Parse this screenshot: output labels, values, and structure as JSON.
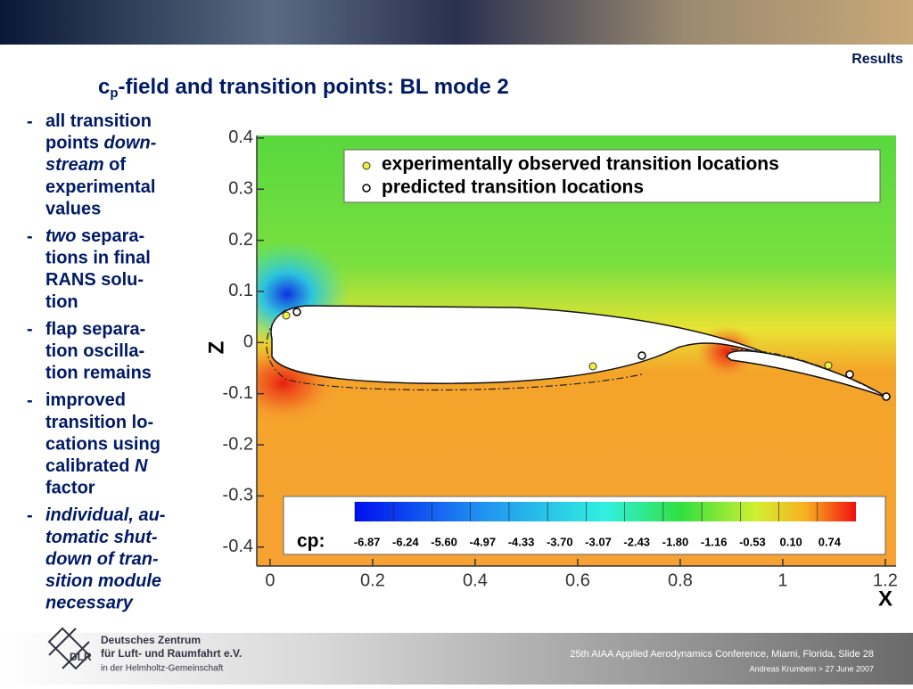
{
  "header": {
    "section": "Results"
  },
  "title": {
    "main": "c",
    "subscript": "p",
    "rest": "-field and transition points: BL mode 2"
  },
  "bullets": [
    {
      "marker": "-",
      "lines": [
        [
          {
            "text": "all transition",
            "italic": false
          }
        ],
        [
          {
            "text": "points ",
            "italic": false
          },
          {
            "text": "down-",
            "italic": true
          }
        ],
        [
          {
            "text": "stream",
            "italic": true
          },
          {
            "text": " of",
            "italic": false
          }
        ],
        [
          {
            "text": "experimental",
            "italic": false
          }
        ],
        [
          {
            "text": "values",
            "italic": false
          }
        ]
      ]
    },
    {
      "marker": "-",
      "lines": [
        [
          {
            "text": "two",
            "italic": true
          },
          {
            "text": " separa-",
            "italic": false
          }
        ],
        [
          {
            "text": "tions in final",
            "italic": false
          }
        ],
        [
          {
            "text": "RANS solu-",
            "italic": false
          }
        ],
        [
          {
            "text": "tion",
            "italic": false
          }
        ]
      ]
    },
    {
      "marker": "-",
      "lines": [
        [
          {
            "text": "flap separa-",
            "italic": false
          }
        ],
        [
          {
            "text": "tion oscilla-",
            "italic": false
          }
        ],
        [
          {
            "text": "tion remains",
            "italic": false
          }
        ]
      ]
    },
    {
      "marker": "-",
      "lines": [
        [
          {
            "text": "improved",
            "italic": false
          }
        ],
        [
          {
            "text": "transition lo-",
            "italic": false
          }
        ],
        [
          {
            "text": "cations using",
            "italic": false
          }
        ],
        [
          {
            "text": "calibrated ",
            "italic": false
          },
          {
            "text": "N",
            "italic": true
          }
        ],
        [
          {
            "text": "factor",
            "italic": false
          }
        ]
      ]
    },
    {
      "marker": "-",
      "lines": [
        [
          {
            "text": "individual, au-",
            "italic": true
          }
        ],
        [
          {
            "text": "tomatic shut-",
            "italic": true
          }
        ],
        [
          {
            "text": "down of tran-",
            "italic": true
          }
        ],
        [
          {
            "text": "sition module",
            "italic": true
          }
        ],
        [
          {
            "text": "necessary",
            "italic": true
          }
        ]
      ]
    }
  ],
  "plot": {
    "xlabel": "X",
    "ylabel": "Z",
    "xlim": [
      -0.026,
      1.221
    ],
    "ylim": [
      -0.437,
      0.405
    ],
    "xticks": [
      0,
      0.2,
      0.4,
      0.6,
      0.8,
      1,
      1.2
    ],
    "yticks": [
      0.4,
      0.3,
      0.2,
      0.1,
      0,
      -0.1,
      -0.2,
      -0.3,
      -0.4
    ],
    "legend": [
      "experimentally observed transition locations",
      "predicted transition locations"
    ],
    "colorbar": {
      "title": "cp:",
      "labels": [
        "-6.87",
        "-6.24",
        "-5.60",
        "-4.97",
        "-4.33",
        "-3.70",
        "-3.07",
        "-2.43",
        "-1.80",
        "-1.16",
        "-0.53",
        "0.10",
        "0.74"
      ]
    }
  },
  "footer": {
    "org_line1": "Deutsches Zentrum",
    "org_line2": "für Luft- und Raumfahrt e.V.",
    "org_line3": "in der Helmholtz-Gemeinschaft",
    "logo": "DLR",
    "conference": "25th AIAA Applied Aerodynamics Conference, Miami, Florida, Slide 28",
    "author": "Andreas Krumbein > 27 June 2007"
  }
}
